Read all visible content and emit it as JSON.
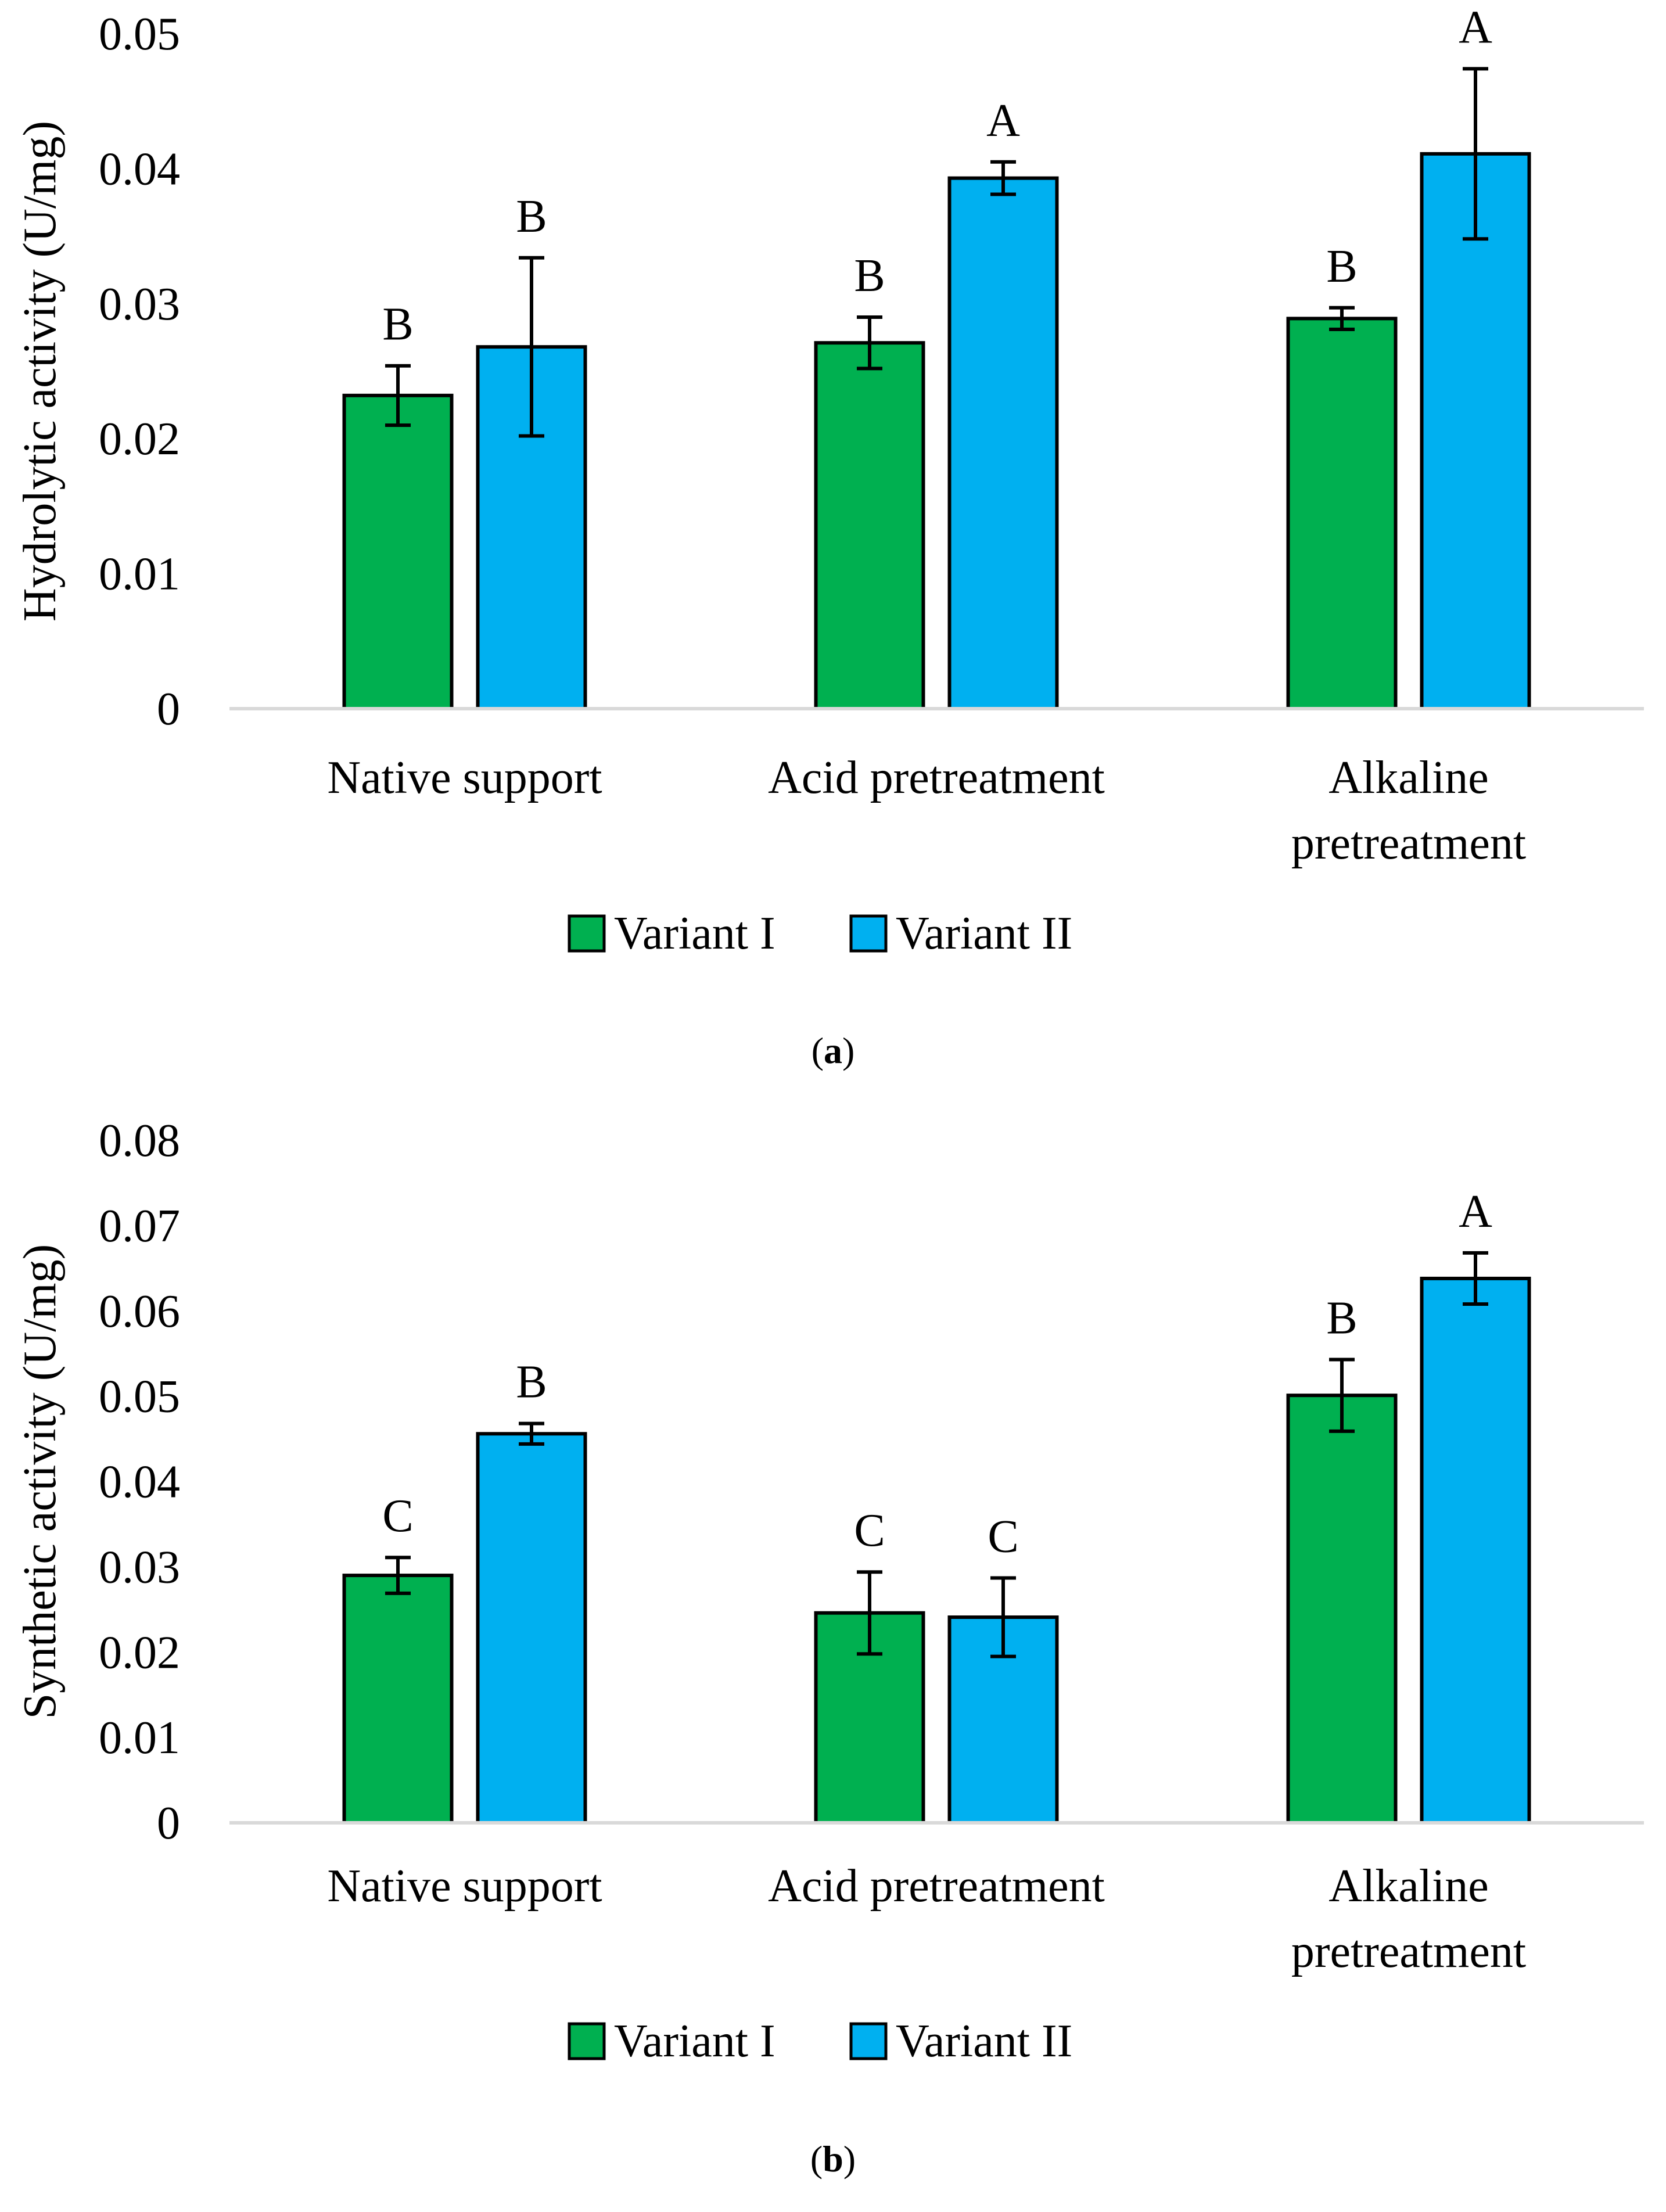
{
  "colors": {
    "variant_i": "#00b050",
    "variant_ii": "#00b0f0",
    "axis": "#d9d9d9",
    "bar_edge": "#000000"
  },
  "chart_data": [
    {
      "type": "bar",
      "panel": "a",
      "caption_letter": "a",
      "title": "",
      "xlabel": "",
      "ylabel": "Hydrolytic activity (U/mg)",
      "ylim": [
        0,
        0.05
      ],
      "yticks": [
        0,
        0.01,
        0.02,
        0.03,
        0.04,
        0.05
      ],
      "ytick_labels": [
        "0",
        "0.01",
        "0.02",
        "0.03",
        "0.04",
        "0.05"
      ],
      "grid": false,
      "legend_position": "bottom",
      "categories": [
        [
          "Native support"
        ],
        [
          "Acid pretreatment"
        ],
        [
          "Alkaline",
          "pretreatment"
        ]
      ],
      "series": [
        {
          "name": "Variant I",
          "color_key": "variant_i",
          "values": [
            0.0232,
            0.0271,
            0.0289
          ],
          "errors": [
            0.0022,
            0.0019,
            0.0008
          ],
          "labels": [
            "B",
            "B",
            "B"
          ]
        },
        {
          "name": "Variant II",
          "color_key": "variant_ii",
          "values": [
            0.0268,
            0.0393,
            0.0411
          ],
          "errors": [
            0.0066,
            0.0012,
            0.0063
          ],
          "labels": [
            "B",
            "A",
            "A"
          ]
        }
      ]
    },
    {
      "type": "bar",
      "panel": "b",
      "caption_letter": "b",
      "title": "",
      "xlabel": "",
      "ylabel": "Synthetic activity (U/mg)",
      "ylim": [
        0,
        0.08
      ],
      "yticks": [
        0,
        0.01,
        0.02,
        0.03,
        0.04,
        0.05,
        0.06,
        0.07,
        0.08
      ],
      "ytick_labels": [
        "0",
        "0.01",
        "0.02",
        "0.03",
        "0.04",
        "0.05",
        "0.06",
        "0.07",
        "0.08"
      ],
      "grid": false,
      "legend_position": "bottom",
      "categories": [
        [
          "Native support"
        ],
        [
          "Acid pretreatment"
        ],
        [
          "Alkaline",
          "pretreatment"
        ]
      ],
      "series": [
        {
          "name": "Variant I",
          "color_key": "variant_i",
          "values": [
            0.029,
            0.0246,
            0.0501
          ],
          "errors": [
            0.0021,
            0.0048,
            0.0042
          ],
          "labels": [
            "C",
            "C",
            "B"
          ]
        },
        {
          "name": "Variant II",
          "color_key": "variant_ii",
          "values": [
            0.0456,
            0.0241,
            0.0638
          ],
          "errors": [
            0.0012,
            0.0046,
            0.003
          ],
          "labels": [
            "B",
            "C",
            "A"
          ]
        }
      ]
    }
  ]
}
